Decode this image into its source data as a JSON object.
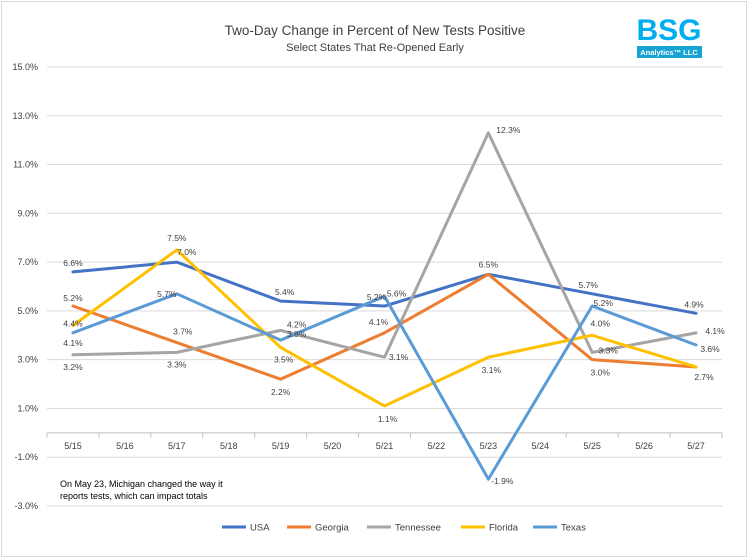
{
  "chart_data": {
    "type": "line",
    "title": "Two-Day Change in Percent of New Tests Positive",
    "subtitle": "Select States That Re-Opened Early",
    "categories": [
      "5/15",
      "5/16",
      "5/17",
      "5/18",
      "5/19",
      "5/20",
      "5/21",
      "5/22",
      "5/23",
      "5/24",
      "5/25",
      "5/26",
      "5/27"
    ],
    "ylim": [
      -3.0,
      15.0
    ],
    "yticks": [
      "15.0%",
      "13.0%",
      "11.0%",
      "9.0%",
      "7.0%",
      "5.0%",
      "3.0%",
      "1.0%",
      "-1.0%",
      "-3.0%"
    ],
    "grid": "horizontal",
    "legend_position": "bottom",
    "series": [
      {
        "name": "USA",
        "color": "#4472C4",
        "points": [
          [
            0,
            6.6
          ],
          [
            2,
            7.0
          ],
          [
            4,
            5.4
          ],
          [
            6,
            5.2
          ],
          [
            8,
            6.5
          ],
          [
            10,
            5.7
          ],
          [
            12,
            4.9
          ]
        ],
        "labels": [
          "6.6%",
          "7.0%",
          "5.4%",
          "5.2%",
          "6.5%",
          "5.7%",
          "4.9%"
        ]
      },
      {
        "name": "Georgia",
        "color": "#ED7D31",
        "points": [
          [
            0,
            5.2
          ],
          [
            2,
            3.7
          ],
          [
            4,
            2.2
          ],
          [
            6,
            4.1
          ],
          [
            8,
            6.5
          ],
          [
            10,
            3.0
          ],
          [
            12,
            2.7
          ]
        ],
        "labels": [
          "5.2%",
          "3.7%",
          "2.2%",
          "4.1%",
          "",
          "3.0%",
          ""
        ]
      },
      {
        "name": "Tennessee",
        "color": "#A5A5A5",
        "points": [
          [
            0,
            3.2
          ],
          [
            2,
            3.3
          ],
          [
            4,
            4.2
          ],
          [
            6,
            3.1
          ],
          [
            8,
            12.3
          ],
          [
            10,
            3.3
          ],
          [
            12,
            4.1
          ]
        ],
        "labels": [
          "3.2%",
          "3.3%",
          "4.2%",
          "3.1%",
          "12.3%",
          "3.3%",
          "4.1%"
        ]
      },
      {
        "name": "Florida",
        "color": "#FFC000",
        "points": [
          [
            0,
            4.4
          ],
          [
            2,
            7.5
          ],
          [
            4,
            3.5
          ],
          [
            6,
            1.1
          ],
          [
            8,
            3.1
          ],
          [
            10,
            4.0
          ],
          [
            12,
            2.7
          ]
        ],
        "labels": [
          "4.4%",
          "7.5%",
          "3.5%",
          "1.1%",
          "3.1%",
          "4.0%",
          "2.7%"
        ]
      },
      {
        "name": "Texas",
        "color": "#5B9BD5",
        "points": [
          [
            0,
            4.1
          ],
          [
            2,
            5.7
          ],
          [
            4,
            3.8
          ],
          [
            6,
            5.6
          ],
          [
            8,
            -1.9
          ],
          [
            10,
            5.2
          ],
          [
            12,
            3.6
          ]
        ],
        "labels": [
          "4.1%",
          "5.7%",
          "3.8%",
          "5.6%",
          "-1.9%",
          "5.2%",
          "3.6%"
        ]
      }
    ],
    "annotation": [
      "On May 23, Michigan changed the way it",
      "reports tests, which can impact totals"
    ]
  },
  "logo": {
    "text": "BSG",
    "subtext": "Analytics™ LLC",
    "colors": {
      "blue": "#00AEEF",
      "green": "#7FB77E",
      "gray": "#9AA6AE",
      "bar": "#17A3D3"
    }
  }
}
